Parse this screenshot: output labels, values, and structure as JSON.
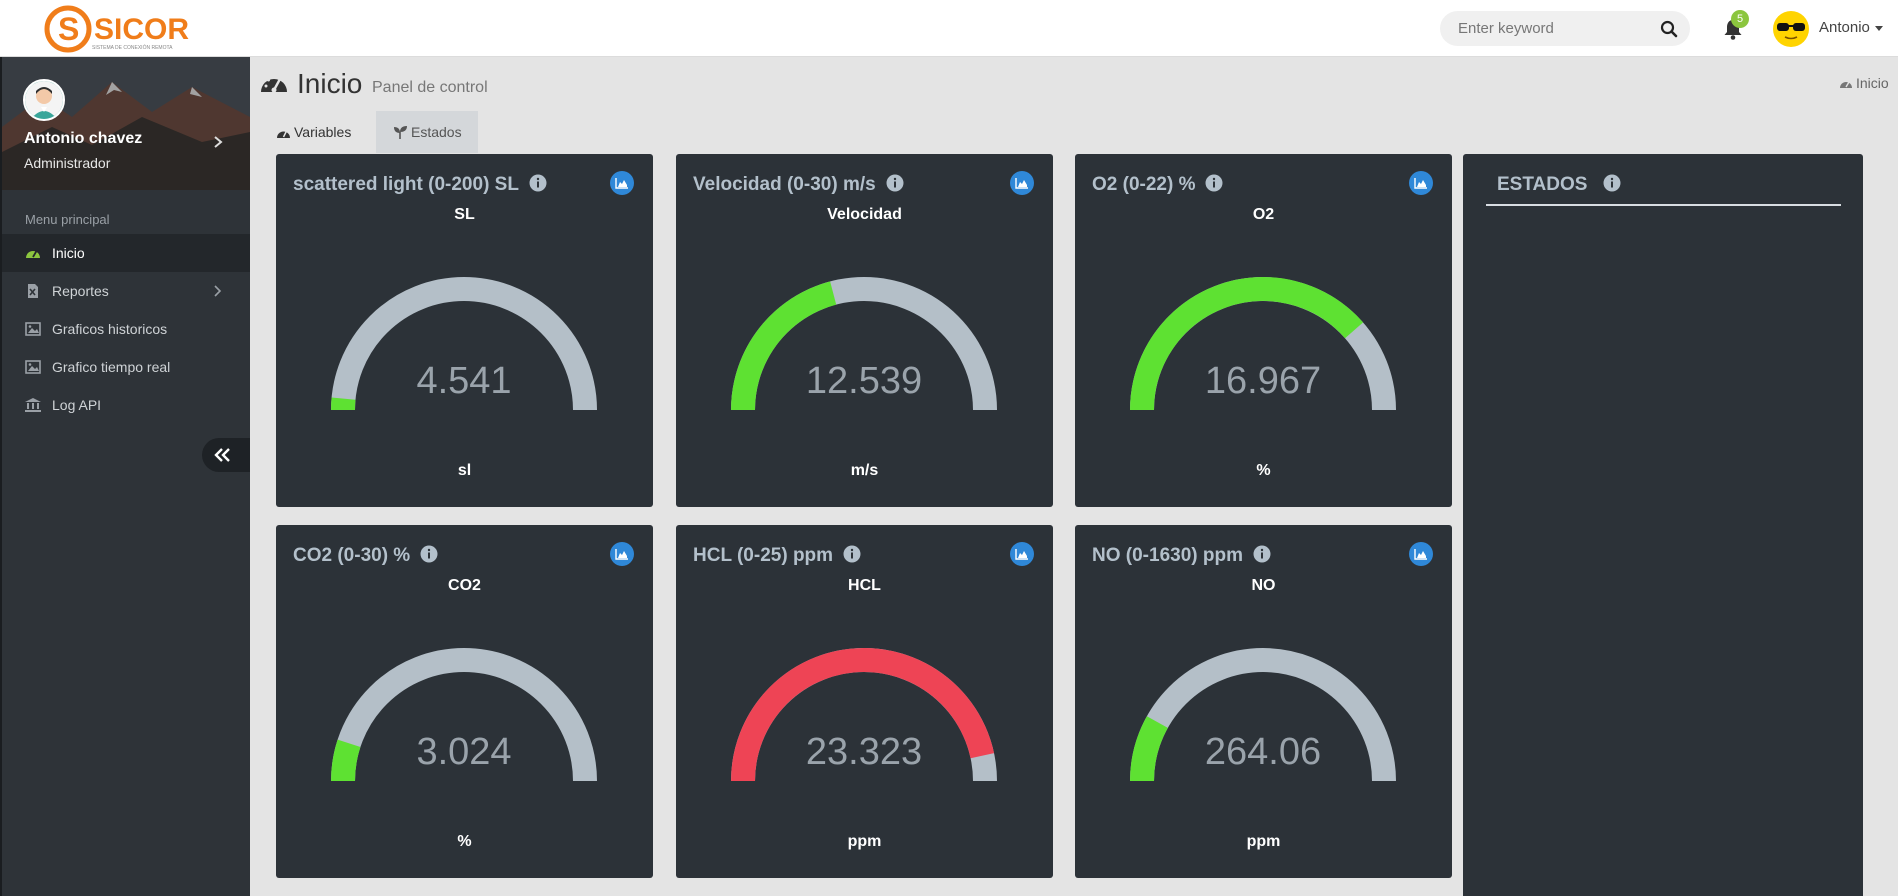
{
  "topbar": {
    "logo_text": "SICOR",
    "logo_tagline": "SISTEMA DE CONEXIÓN REMOTA",
    "search_placeholder": "Enter keyword",
    "notifications_count": "5",
    "user_name": "Antonio"
  },
  "sidebar": {
    "profile_name": "Antonio chavez",
    "profile_role": "Administrador",
    "menu_title": "Menu principal",
    "items": [
      {
        "label": "Inicio",
        "icon": "dashboard-icon",
        "active": true
      },
      {
        "label": "Reportes",
        "icon": "excel-file-icon",
        "has_submenu": true
      },
      {
        "label": "Graficos historicos",
        "icon": "image-icon"
      },
      {
        "label": "Grafico tiempo real",
        "icon": "image-icon"
      },
      {
        "label": "Log API",
        "icon": "bank-icon"
      }
    ],
    "collapse_icon": "double-chevron-left-icon"
  },
  "header": {
    "title": "Inicio",
    "subtitle": "Panel de control",
    "breadcrumb": "Inicio"
  },
  "tabs": [
    {
      "label": "Variables",
      "icon": "dashboard-icon",
      "active": true
    },
    {
      "label": "Estados",
      "icon": "seedling-icon",
      "active": false
    }
  ],
  "gauges": [
    {
      "title": "scattered light (0-200) SL",
      "label": "SL",
      "value": "4.541",
      "unit": "sl",
      "min": 0,
      "max": 200,
      "num": 4.541,
      "color": "#5ee132"
    },
    {
      "title": "Velocidad (0-30) m/s",
      "label": "Velocidad",
      "value": "12.539",
      "unit": "m/s",
      "min": 0,
      "max": 30,
      "num": 12.539,
      "color": "#5ee132"
    },
    {
      "title": "O2 (0-22) %",
      "label": "O2",
      "value": "16.967",
      "unit": "%",
      "min": 0,
      "max": 22,
      "num": 16.967,
      "color": "#5ee132"
    },
    {
      "title": "CO2 (0-30) %",
      "label": "CO2",
      "value": "3.024",
      "unit": "%",
      "min": 0,
      "max": 30,
      "num": 3.024,
      "color": "#5ee132"
    },
    {
      "title": "HCL (0-25) ppm",
      "label": "HCL",
      "value": "23.323",
      "unit": "ppm",
      "min": 0,
      "max": 25,
      "num": 23.323,
      "color": "#ee4455"
    },
    {
      "title": "NO (0-1630) ppm",
      "label": "NO",
      "value": "264.06",
      "unit": "ppm",
      "min": 0,
      "max": 1630,
      "num": 264.06,
      "color": "#5ee132"
    }
  ],
  "estados": {
    "title": "ESTADOS"
  },
  "colors": {
    "gauge_track": "#b4bfc8",
    "card_bg": "#2c3238",
    "accent_blue": "#2f88d8",
    "ok_green": "#5ee132",
    "alert_red": "#ee4455"
  }
}
